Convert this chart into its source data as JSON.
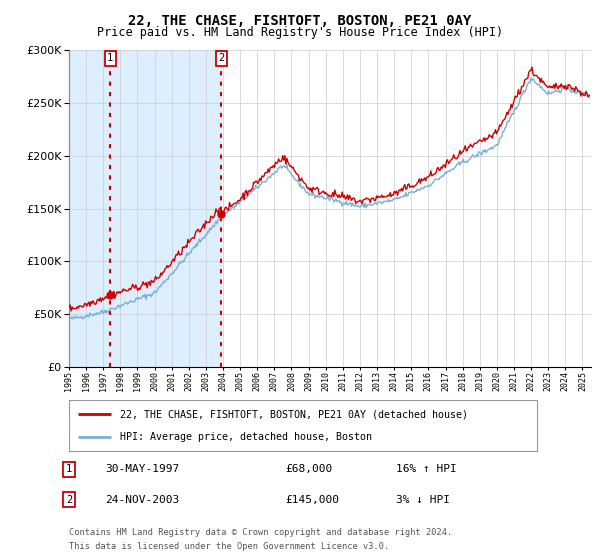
{
  "title": "22, THE CHASE, FISHTOFT, BOSTON, PE21 0AY",
  "subtitle": "Price paid vs. HM Land Registry's House Price Index (HPI)",
  "legend_line1": "22, THE CHASE, FISHTOFT, BOSTON, PE21 0AY (detached house)",
  "legend_line2": "HPI: Average price, detached house, Boston",
  "sale1_date_label": "30-MAY-1997",
  "sale1_price_label": "£68,000",
  "sale1_hpi_label": "16% ↑ HPI",
  "sale2_date_label": "24-NOV-2003",
  "sale2_price_label": "£145,000",
  "sale2_hpi_label": "3% ↓ HPI",
  "footnote_line1": "Contains HM Land Registry data © Crown copyright and database right 2024.",
  "footnote_line2": "This data is licensed under the Open Government Licence v3.0.",
  "sale1_year": 1997.41,
  "sale1_price": 68000,
  "sale2_year": 2003.9,
  "sale2_price": 145000,
  "ylim": [
    0,
    300000
  ],
  "xlim_start": 1995.0,
  "xlim_end": 2025.5,
  "red_color": "#cc0000",
  "blue_color": "#7ab0d4",
  "shade_color": "#ddeeff",
  "background_color": "#ffffff",
  "grid_color": "#cccccc",
  "title_fontsize": 10,
  "subtitle_fontsize": 8.5
}
